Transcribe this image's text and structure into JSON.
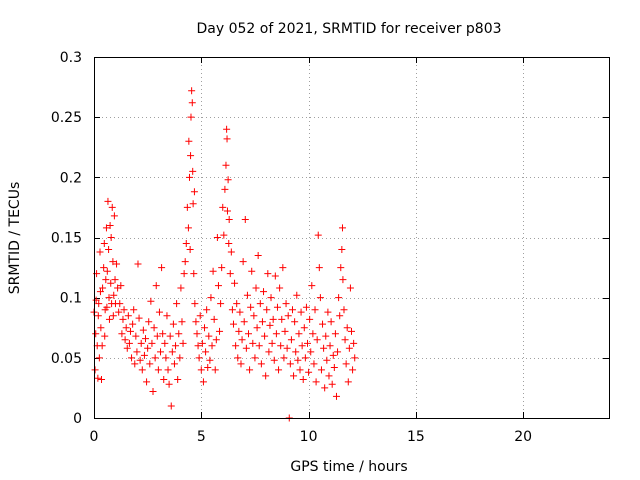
{
  "chart_data": {
    "type": "scatter",
    "title": "Day 052 of 2021, SRMTID for receiver p803",
    "xlabel": "GPS time / hours",
    "ylabel": "SRMTID / TECUs",
    "xlim": [
      0,
      24
    ],
    "ylim": [
      0,
      0.3
    ],
    "x_ticks": [
      0,
      5,
      10,
      15,
      20
    ],
    "x_tick_labels": [
      "0",
      "5",
      "10",
      "15",
      "20"
    ],
    "y_ticks": [
      0,
      0.05,
      0.1,
      0.15,
      0.2,
      0.25,
      0.3
    ],
    "y_tick_labels": [
      "0",
      "0.05",
      "0.1",
      "0.15",
      "0.2",
      "0.25",
      "0.3"
    ],
    "grid": true,
    "marker": "+",
    "color": "#ff0000",
    "series": [
      {
        "name": "SRMTID",
        "points": [
          [
            0.0,
            0.088
          ],
          [
            0.05,
            0.04
          ],
          [
            0.08,
            0.07
          ],
          [
            0.1,
            0.098
          ],
          [
            0.12,
            0.12
          ],
          [
            0.15,
            0.06
          ],
          [
            0.18,
            0.033
          ],
          [
            0.2,
            0.085
          ],
          [
            0.22,
            0.095
          ],
          [
            0.25,
            0.05
          ],
          [
            0.28,
            0.138
          ],
          [
            0.3,
            0.105
          ],
          [
            0.32,
            0.075
          ],
          [
            0.35,
            0.032
          ],
          [
            0.38,
            0.06
          ],
          [
            0.4,
            0.108
          ],
          [
            0.45,
            0.125
          ],
          [
            0.48,
            0.145
          ],
          [
            0.5,
            0.068
          ],
          [
            0.52,
            0.09
          ],
          [
            0.55,
            0.115
          ],
          [
            0.58,
            0.158
          ],
          [
            0.6,
            0.092
          ],
          [
            0.62,
            0.122
          ],
          [
            0.65,
            0.18
          ],
          [
            0.68,
            0.14
          ],
          [
            0.7,
            0.1
          ],
          [
            0.72,
            0.082
          ],
          [
            0.75,
            0.16
          ],
          [
            0.78,
            0.112
          ],
          [
            0.8,
            0.15
          ],
          [
            0.82,
            0.095
          ],
          [
            0.85,
            0.175
          ],
          [
            0.88,
            0.13
          ],
          [
            0.9,
            0.085
          ],
          [
            0.92,
            0.102
          ],
          [
            0.95,
            0.168
          ],
          [
            0.98,
            0.115
          ],
          [
            1.0,
            0.095
          ],
          [
            1.05,
            0.128
          ],
          [
            1.1,
            0.108
          ],
          [
            1.15,
            0.088
          ],
          [
            1.2,
            0.095
          ],
          [
            1.25,
            0.11
          ],
          [
            1.3,
            0.07
          ],
          [
            1.35,
            0.082
          ],
          [
            1.4,
            0.09
          ],
          [
            1.45,
            0.065
          ],
          [
            1.5,
            0.075
          ],
          [
            1.55,
            0.058
          ],
          [
            1.6,
            0.085
          ],
          [
            1.65,
            0.062
          ],
          [
            1.7,
            0.072
          ],
          [
            1.75,
            0.05
          ],
          [
            1.8,
            0.078
          ],
          [
            1.85,
            0.09
          ],
          [
            1.9,
            0.045
          ],
          [
            1.95,
            0.068
          ],
          [
            2.0,
            0.055
          ],
          [
            2.05,
            0.128
          ],
          [
            2.1,
            0.083
          ],
          [
            2.15,
            0.048
          ],
          [
            2.2,
            0.062
          ],
          [
            2.25,
            0.04
          ],
          [
            2.3,
            0.073
          ],
          [
            2.35,
            0.052
          ],
          [
            2.4,
            0.066
          ],
          [
            2.45,
            0.03
          ],
          [
            2.5,
            0.058
          ],
          [
            2.55,
            0.08
          ],
          [
            2.6,
            0.045
          ],
          [
            2.65,
            0.097
          ],
          [
            2.7,
            0.062
          ],
          [
            2.75,
            0.022
          ],
          [
            2.8,
            0.075
          ],
          [
            2.85,
            0.05
          ],
          [
            2.9,
            0.11
          ],
          [
            2.95,
            0.068
          ],
          [
            3.0,
            0.04
          ],
          [
            3.05,
            0.088
          ],
          [
            3.1,
            0.055
          ],
          [
            3.15,
            0.125
          ],
          [
            3.2,
            0.07
          ],
          [
            3.25,
            0.032
          ],
          [
            3.3,
            0.062
          ],
          [
            3.35,
            0.05
          ],
          [
            3.4,
            0.085
          ],
          [
            3.45,
            0.04
          ],
          [
            3.5,
            0.028
          ],
          [
            3.55,
            0.068
          ],
          [
            3.6,
            0.01
          ],
          [
            3.65,
            0.055
          ],
          [
            3.7,
            0.078
          ],
          [
            3.75,
            0.045
          ],
          [
            3.8,
            0.06
          ],
          [
            3.85,
            0.095
          ],
          [
            3.9,
            0.032
          ],
          [
            3.95,
            0.07
          ],
          [
            4.0,
            0.05
          ],
          [
            4.05,
            0.108
          ],
          [
            4.1,
            0.08
          ],
          [
            4.15,
            0.062
          ],
          [
            4.2,
            0.12
          ],
          [
            4.25,
            0.13
          ],
          [
            4.3,
            0.145
          ],
          [
            4.35,
            0.175
          ],
          [
            4.4,
            0.158
          ],
          [
            4.42,
            0.23
          ],
          [
            4.45,
            0.2
          ],
          [
            4.48,
            0.14
          ],
          [
            4.5,
            0.218
          ],
          [
            4.52,
            0.25
          ],
          [
            4.55,
            0.272
          ],
          [
            4.58,
            0.262
          ],
          [
            4.6,
            0.205
          ],
          [
            4.62,
            0.178
          ],
          [
            4.65,
            0.12
          ],
          [
            4.68,
            0.188
          ],
          [
            4.7,
            0.095
          ],
          [
            4.75,
            0.08
          ],
          [
            4.8,
            0.07
          ],
          [
            4.85,
            0.06
          ],
          [
            4.9,
            0.05
          ],
          [
            4.95,
            0.085
          ],
          [
            5.0,
            0.04
          ],
          [
            5.05,
            0.062
          ],
          [
            5.1,
            0.03
          ],
          [
            5.15,
            0.075
          ],
          [
            5.2,
            0.055
          ],
          [
            5.25,
            0.09
          ],
          [
            5.3,
            0.042
          ],
          [
            5.35,
            0.068
          ],
          [
            5.4,
            0.048
          ],
          [
            5.45,
            0.1
          ],
          [
            5.5,
            0.06
          ],
          [
            5.55,
            0.122
          ],
          [
            5.6,
            0.082
          ],
          [
            5.65,
            0.04
          ],
          [
            5.7,
            0.065
          ],
          [
            5.75,
            0.15
          ],
          [
            5.8,
            0.11
          ],
          [
            5.85,
            0.072
          ],
          [
            5.9,
            0.095
          ],
          [
            5.95,
            0.125
          ],
          [
            6.0,
            0.175
          ],
          [
            6.05,
            0.152
          ],
          [
            6.1,
            0.19
          ],
          [
            6.15,
            0.21
          ],
          [
            6.18,
            0.24
          ],
          [
            6.2,
            0.232
          ],
          [
            6.22,
            0.172
          ],
          [
            6.25,
            0.198
          ],
          [
            6.28,
            0.145
          ],
          [
            6.3,
            0.165
          ],
          [
            6.35,
            0.12
          ],
          [
            6.4,
            0.138
          ],
          [
            6.45,
            0.09
          ],
          [
            6.5,
            0.078
          ],
          [
            6.55,
            0.112
          ],
          [
            6.6,
            0.06
          ],
          [
            6.65,
            0.095
          ],
          [
            6.7,
            0.05
          ],
          [
            6.75,
            0.072
          ],
          [
            6.8,
            0.088
          ],
          [
            6.85,
            0.045
          ],
          [
            6.9,
            0.065
          ],
          [
            6.95,
            0.13
          ],
          [
            7.0,
            0.08
          ],
          [
            7.05,
            0.165
          ],
          [
            7.1,
            0.058
          ],
          [
            7.15,
            0.102
          ],
          [
            7.2,
            0.07
          ],
          [
            7.25,
            0.04
          ],
          [
            7.3,
            0.092
          ],
          [
            7.35,
            0.122
          ],
          [
            7.4,
            0.062
          ],
          [
            7.45,
            0.085
          ],
          [
            7.5,
            0.05
          ],
          [
            7.55,
            0.108
          ],
          [
            7.6,
            0.075
          ],
          [
            7.65,
            0.135
          ],
          [
            7.7,
            0.06
          ],
          [
            7.75,
            0.095
          ],
          [
            7.8,
            0.045
          ],
          [
            7.85,
            0.08
          ],
          [
            7.9,
            0.105
          ],
          [
            7.95,
            0.068
          ],
          [
            8.0,
            0.035
          ],
          [
            8.05,
            0.09
          ],
          [
            8.1,
            0.12
          ],
          [
            8.15,
            0.055
          ],
          [
            8.2,
            0.077
          ],
          [
            8.25,
            0.1
          ],
          [
            8.3,
            0.062
          ],
          [
            8.35,
            0.082
          ],
          [
            8.4,
            0.048
          ],
          [
            8.45,
            0.118
          ],
          [
            8.5,
            0.07
          ],
          [
            8.55,
            0.092
          ],
          [
            8.6,
            0.04
          ],
          [
            8.65,
            0.108
          ],
          [
            8.7,
            0.06
          ],
          [
            8.75,
            0.082
          ],
          [
            8.8,
            0.125
          ],
          [
            8.85,
            0.05
          ],
          [
            8.9,
            0.072
          ],
          [
            8.95,
            0.095
          ],
          [
            9.0,
            0.058
          ],
          [
            9.05,
            0.085
          ],
          [
            9.1,
            0.0
          ],
          [
            9.15,
            0.045
          ],
          [
            9.2,
            0.065
          ],
          [
            9.25,
            0.09
          ],
          [
            9.3,
            0.035
          ],
          [
            9.35,
            0.08
          ],
          [
            9.4,
            0.055
          ],
          [
            9.45,
            0.102
          ],
          [
            9.5,
            0.048
          ],
          [
            9.55,
            0.07
          ],
          [
            9.6,
            0.04
          ],
          [
            9.65,
            0.088
          ],
          [
            9.7,
            0.06
          ],
          [
            9.75,
            0.032
          ],
          [
            9.8,
            0.075
          ],
          [
            9.85,
            0.05
          ],
          [
            9.9,
            0.092
          ],
          [
            9.95,
            0.062
          ],
          [
            10.0,
            0.038
          ],
          [
            10.05,
            0.082
          ],
          [
            10.1,
            0.055
          ],
          [
            10.15,
            0.11
          ],
          [
            10.2,
            0.07
          ],
          [
            10.25,
            0.045
          ],
          [
            10.3,
            0.09
          ],
          [
            10.35,
            0.03
          ],
          [
            10.4,
            0.065
          ],
          [
            10.45,
            0.152
          ],
          [
            10.5,
            0.125
          ],
          [
            10.55,
            0.1
          ],
          [
            10.6,
            0.04
          ],
          [
            10.65,
            0.078
          ],
          [
            10.7,
            0.058
          ],
          [
            10.75,
            0.025
          ],
          [
            10.8,
            0.068
          ],
          [
            10.85,
            0.048
          ],
          [
            10.9,
            0.088
          ],
          [
            10.95,
            0.035
          ],
          [
            11.0,
            0.06
          ],
          [
            11.05,
            0.08
          ],
          [
            11.1,
            0.028
          ],
          [
            11.15,
            0.052
          ],
          [
            11.2,
            0.042
          ],
          [
            11.25,
            0.07
          ],
          [
            11.3,
            0.018
          ],
          [
            11.35,
            0.055
          ],
          [
            11.4,
            0.1
          ],
          [
            11.45,
            0.085
          ],
          [
            11.5,
            0.125
          ],
          [
            11.55,
            0.14
          ],
          [
            11.58,
            0.158
          ],
          [
            11.6,
            0.115
          ],
          [
            11.65,
            0.09
          ],
          [
            11.7,
            0.065
          ],
          [
            11.75,
            0.045
          ],
          [
            11.8,
            0.075
          ],
          [
            11.85,
            0.03
          ],
          [
            11.9,
            0.058
          ],
          [
            11.95,
            0.108
          ],
          [
            12.0,
            0.072
          ],
          [
            12.05,
            0.04
          ],
          [
            12.1,
            0.062
          ],
          [
            12.15,
            0.05
          ]
        ]
      }
    ]
  }
}
